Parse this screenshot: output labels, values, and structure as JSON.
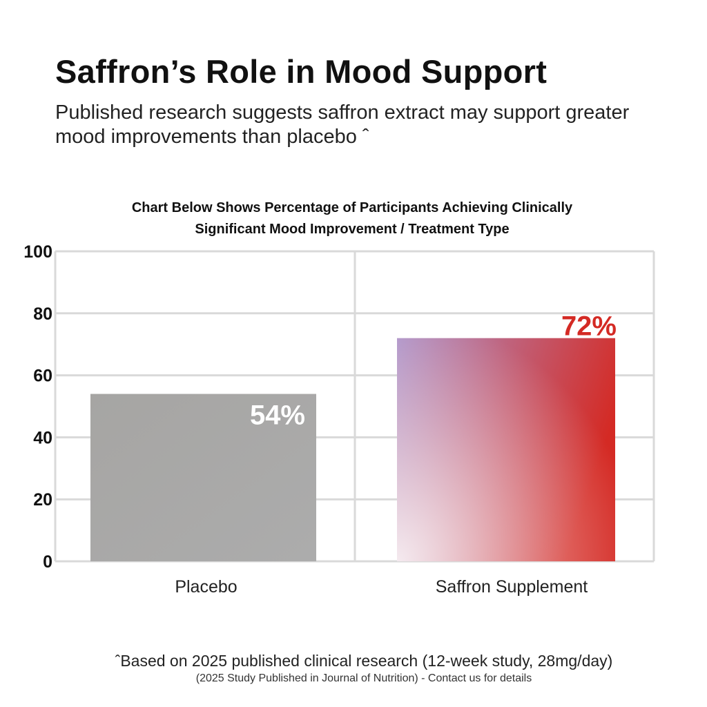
{
  "header": {
    "title": "Saffron’s Role in Mood Support",
    "subtitle": "Published research suggests saffron extract may support greater mood improvements than placebo ˆ"
  },
  "chart_data": {
    "type": "bar",
    "title": "Chart Below Shows Percentage of Participants Achieving Clinically Significant Mood Improvement / Treatment Type",
    "categories": [
      "Placebo",
      "Saffron Supplement"
    ],
    "values": [
      54,
      72
    ],
    "data_labels": [
      "54%",
      "72%"
    ],
    "ylim": [
      0,
      100
    ],
    "yticks": [
      0,
      20,
      40,
      60,
      80,
      100
    ],
    "grid": true,
    "colors": {
      "placebo": "#a8a8a6",
      "saffron_start": "#ae93c8",
      "saffron_end": "#d42a24",
      "saffron_label": "#d42a24",
      "grid": "#d9d9d9"
    }
  },
  "footer": {
    "note": "ˆBased on 2025 published clinical research (12-week study, 28mg/day)",
    "source": "(2025 Study Published in Journal of Nutrition) - Contact us for details"
  }
}
